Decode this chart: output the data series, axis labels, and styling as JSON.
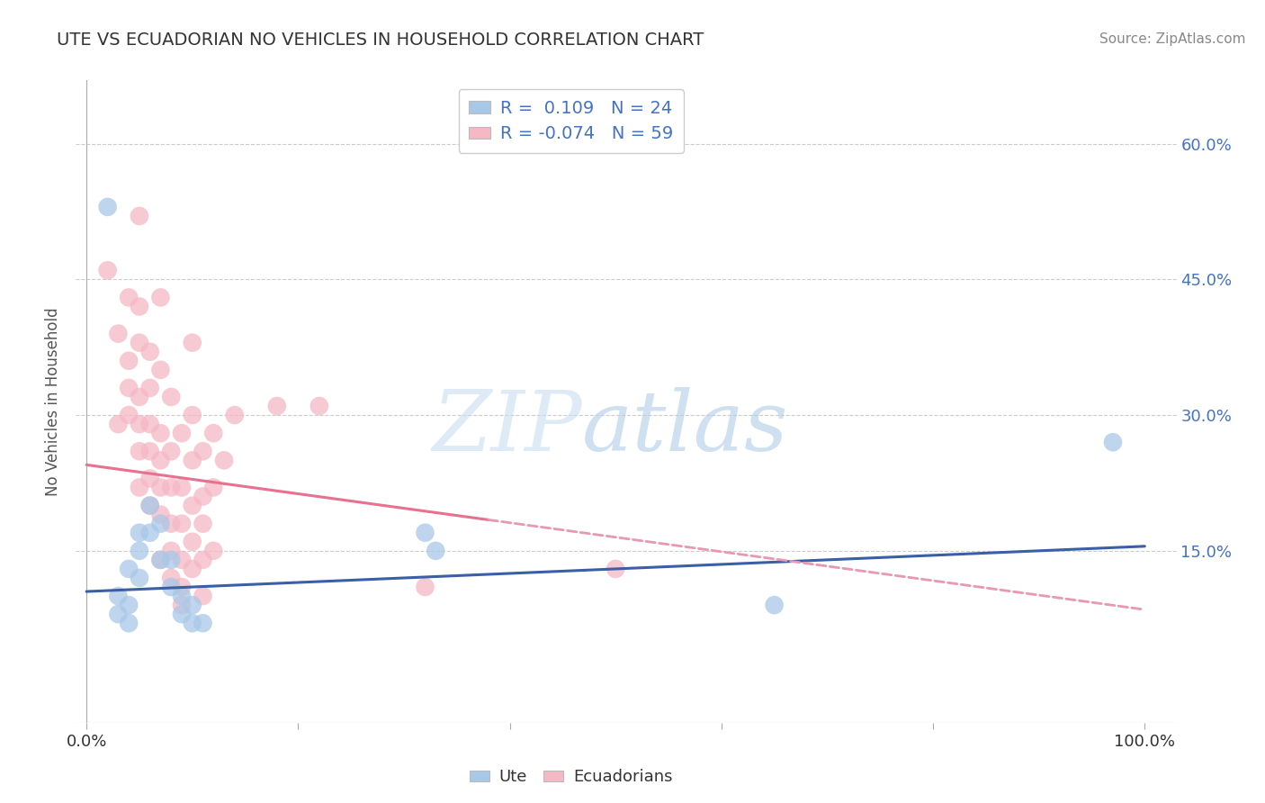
{
  "title": "UTE VS ECUADORIAN NO VEHICLES IN HOUSEHOLD CORRELATION CHART",
  "source": "Source: ZipAtlas.com",
  "ylabel": "No Vehicles in Household",
  "xlim": [
    -0.01,
    1.03
  ],
  "ylim": [
    -0.04,
    0.67
  ],
  "ytick_vals": [
    0.15,
    0.3,
    0.45,
    0.6
  ],
  "ytick_labels": [
    "15.0%",
    "30.0%",
    "45.0%",
    "60.0%"
  ],
  "ute_color": "#a8c8e8",
  "ecuadorian_color": "#f5b8c4",
  "ute_line_color": "#3a5fa8",
  "ecuadorian_line_solid_color": "#e87090",
  "ecuadorian_line_dash_color": "#e898b0",
  "watermark_zip": "ZIP",
  "watermark_atlas": "atlas",
  "legend_ute_label": "R =  0.109   N = 24",
  "legend_ecu_label": "R = -0.074   N = 59",
  "ute_scatter": [
    [
      0.02,
      0.53
    ],
    [
      0.03,
      0.1
    ],
    [
      0.03,
      0.08
    ],
    [
      0.04,
      0.13
    ],
    [
      0.04,
      0.09
    ],
    [
      0.04,
      0.07
    ],
    [
      0.05,
      0.17
    ],
    [
      0.05,
      0.15
    ],
    [
      0.05,
      0.12
    ],
    [
      0.06,
      0.2
    ],
    [
      0.06,
      0.17
    ],
    [
      0.07,
      0.18
    ],
    [
      0.07,
      0.14
    ],
    [
      0.08,
      0.14
    ],
    [
      0.08,
      0.11
    ],
    [
      0.09,
      0.1
    ],
    [
      0.09,
      0.08
    ],
    [
      0.1,
      0.09
    ],
    [
      0.1,
      0.07
    ],
    [
      0.11,
      0.07
    ],
    [
      0.32,
      0.17
    ],
    [
      0.33,
      0.15
    ],
    [
      0.65,
      0.09
    ],
    [
      0.97,
      0.27
    ]
  ],
  "ecuadorian_scatter": [
    [
      0.02,
      0.46
    ],
    [
      0.03,
      0.39
    ],
    [
      0.03,
      0.29
    ],
    [
      0.04,
      0.43
    ],
    [
      0.04,
      0.36
    ],
    [
      0.04,
      0.33
    ],
    [
      0.04,
      0.3
    ],
    [
      0.05,
      0.52
    ],
    [
      0.05,
      0.42
    ],
    [
      0.05,
      0.38
    ],
    [
      0.05,
      0.32
    ],
    [
      0.05,
      0.29
    ],
    [
      0.05,
      0.26
    ],
    [
      0.05,
      0.22
    ],
    [
      0.06,
      0.37
    ],
    [
      0.06,
      0.33
    ],
    [
      0.06,
      0.29
    ],
    [
      0.06,
      0.26
    ],
    [
      0.06,
      0.23
    ],
    [
      0.06,
      0.2
    ],
    [
      0.07,
      0.43
    ],
    [
      0.07,
      0.35
    ],
    [
      0.07,
      0.28
    ],
    [
      0.07,
      0.25
    ],
    [
      0.07,
      0.22
    ],
    [
      0.07,
      0.19
    ],
    [
      0.07,
      0.14
    ],
    [
      0.08,
      0.32
    ],
    [
      0.08,
      0.26
    ],
    [
      0.08,
      0.22
    ],
    [
      0.08,
      0.18
    ],
    [
      0.08,
      0.15
    ],
    [
      0.08,
      0.12
    ],
    [
      0.09,
      0.28
    ],
    [
      0.09,
      0.22
    ],
    [
      0.09,
      0.18
    ],
    [
      0.09,
      0.14
    ],
    [
      0.09,
      0.11
    ],
    [
      0.09,
      0.09
    ],
    [
      0.1,
      0.38
    ],
    [
      0.1,
      0.3
    ],
    [
      0.1,
      0.25
    ],
    [
      0.1,
      0.2
    ],
    [
      0.1,
      0.16
    ],
    [
      0.1,
      0.13
    ],
    [
      0.11,
      0.26
    ],
    [
      0.11,
      0.21
    ],
    [
      0.11,
      0.18
    ],
    [
      0.11,
      0.14
    ],
    [
      0.11,
      0.1
    ],
    [
      0.12,
      0.28
    ],
    [
      0.12,
      0.22
    ],
    [
      0.12,
      0.15
    ],
    [
      0.13,
      0.25
    ],
    [
      0.14,
      0.3
    ],
    [
      0.18,
      0.31
    ],
    [
      0.22,
      0.31
    ],
    [
      0.32,
      0.11
    ],
    [
      0.5,
      0.13
    ]
  ],
  "ecu_line_x_solid_end": 0.38,
  "ute_line_start_y": 0.105,
  "ute_line_end_y": 0.155,
  "ecu_line_start_y": 0.245,
  "ecu_line_end_y": 0.085
}
